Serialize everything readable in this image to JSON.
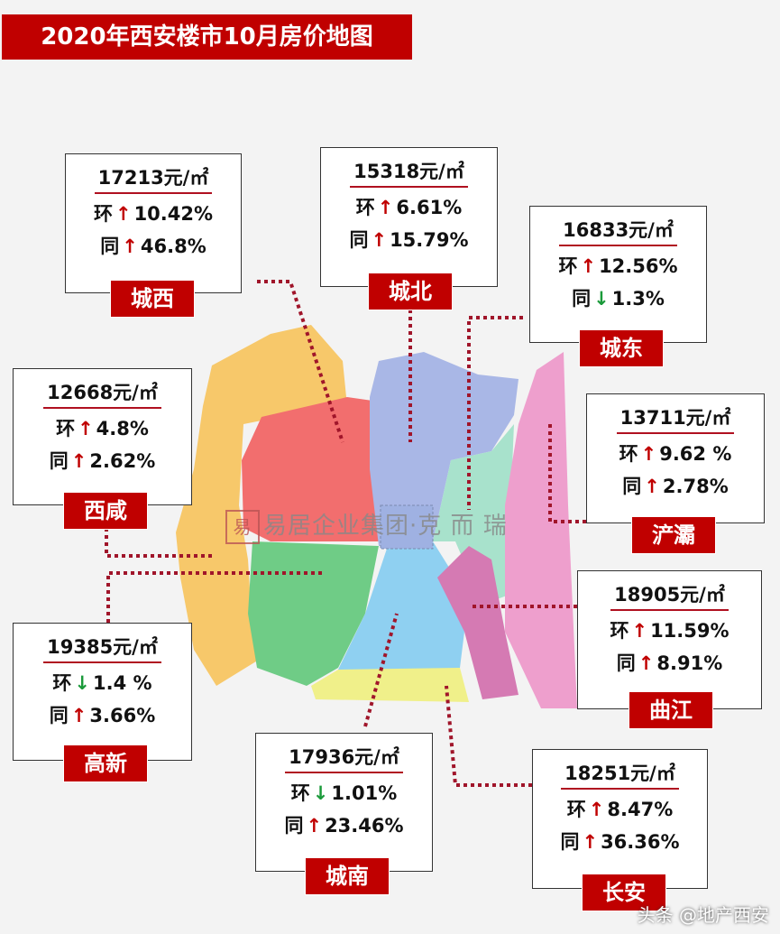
{
  "title": "2020年西安楼市10月房价地图",
  "watermark": {
    "logo": "易",
    "text": "易居企业集团·克 而 瑞"
  },
  "footer": "头条 @地产西安",
  "colors": {
    "accent": "#c00000",
    "up": "#c00000",
    "down": "#1a9a3a"
  },
  "districts": [
    {
      "name": "城西",
      "price": "17213元/㎡",
      "mom_label": "环",
      "mom_dir": "up",
      "mom": "10.42%",
      "yoy_label": "同",
      "yoy_dir": "up",
      "yoy": "46.8%"
    },
    {
      "name": "城北",
      "price": "15318元/㎡",
      "mom_label": "环",
      "mom_dir": "up",
      "mom": "6.61%",
      "yoy_label": "同",
      "yoy_dir": "up",
      "yoy": "15.79%"
    },
    {
      "name": "城东",
      "price": "16833元/㎡",
      "mom_label": "环",
      "mom_dir": "up",
      "mom": "12.56%",
      "yoy_label": "同",
      "yoy_dir": "down",
      "yoy": "1.3%"
    },
    {
      "name": "西咸",
      "price": "12668元/㎡",
      "mom_label": "环",
      "mom_dir": "up",
      "mom": "4.8%",
      "yoy_label": "同",
      "yoy_dir": "up",
      "yoy": "2.62%"
    },
    {
      "name": "浐灞",
      "price": "13711元/㎡",
      "mom_label": "环",
      "mom_dir": "up",
      "mom": "9.62 %",
      "yoy_label": "同",
      "yoy_dir": "up",
      "yoy": "2.78%"
    },
    {
      "name": "曲江",
      "price": "18905元/㎡",
      "mom_label": "环",
      "mom_dir": "up",
      "mom": "11.59%",
      "yoy_label": "同",
      "yoy_dir": "up",
      "yoy": "8.91%"
    },
    {
      "name": "高新",
      "price": "19385元/㎡",
      "mom_label": "环",
      "mom_dir": "down",
      "mom": "1.4 %",
      "yoy_label": "同",
      "yoy_dir": "up",
      "yoy": "3.66%"
    },
    {
      "name": "城南",
      "price": "17936元/㎡",
      "mom_label": "环",
      "mom_dir": "down",
      "mom": "1.01%",
      "yoy_label": "同",
      "yoy_dir": "up",
      "yoy": "23.46%"
    },
    {
      "name": "长安",
      "price": "18251元/㎡",
      "mom_label": "环",
      "mom_dir": "up",
      "mom": "8.47%",
      "yoy_label": "同",
      "yoy_dir": "up",
      "yoy": "36.36%"
    }
  ]
}
